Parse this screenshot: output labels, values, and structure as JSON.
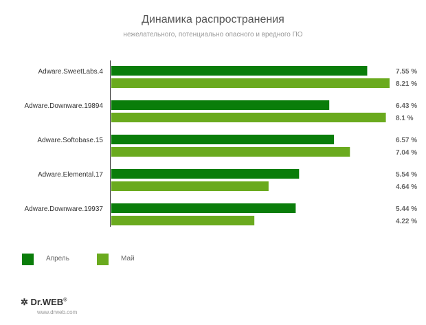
{
  "chart_data": {
    "type": "bar",
    "orientation": "horizontal",
    "title": "Динамика распространения",
    "subtitle": "нежелательного, потенциально опасного и вредного ПО",
    "categories": [
      "Adware.SweetLabs.4",
      "Adware.Downware.19894",
      "Adware.Softobase.15",
      "Adware.Elemental.17",
      "Adware.Downware.19937"
    ],
    "series": [
      {
        "name": "Апрель",
        "color": "#0a7d0a",
        "values": [
          7.55,
          6.43,
          6.57,
          5.54,
          5.44
        ],
        "labels": [
          "7.55 %",
          "6.43 %",
          "6.57 %",
          "5.54 %",
          "5.44 %"
        ]
      },
      {
        "name": "Май",
        "color": "#6aaa1e",
        "values": [
          8.21,
          8.1,
          7.04,
          4.64,
          4.22
        ],
        "labels": [
          "8.21 %",
          "8.1 %",
          "7.04 %",
          "4.64 %",
          "4.22 %"
        ]
      }
    ],
    "legend": "bottom-left",
    "grid": false
  },
  "logo": {
    "text": "Dr.WEB®",
    "url": "www.drweb.com"
  }
}
